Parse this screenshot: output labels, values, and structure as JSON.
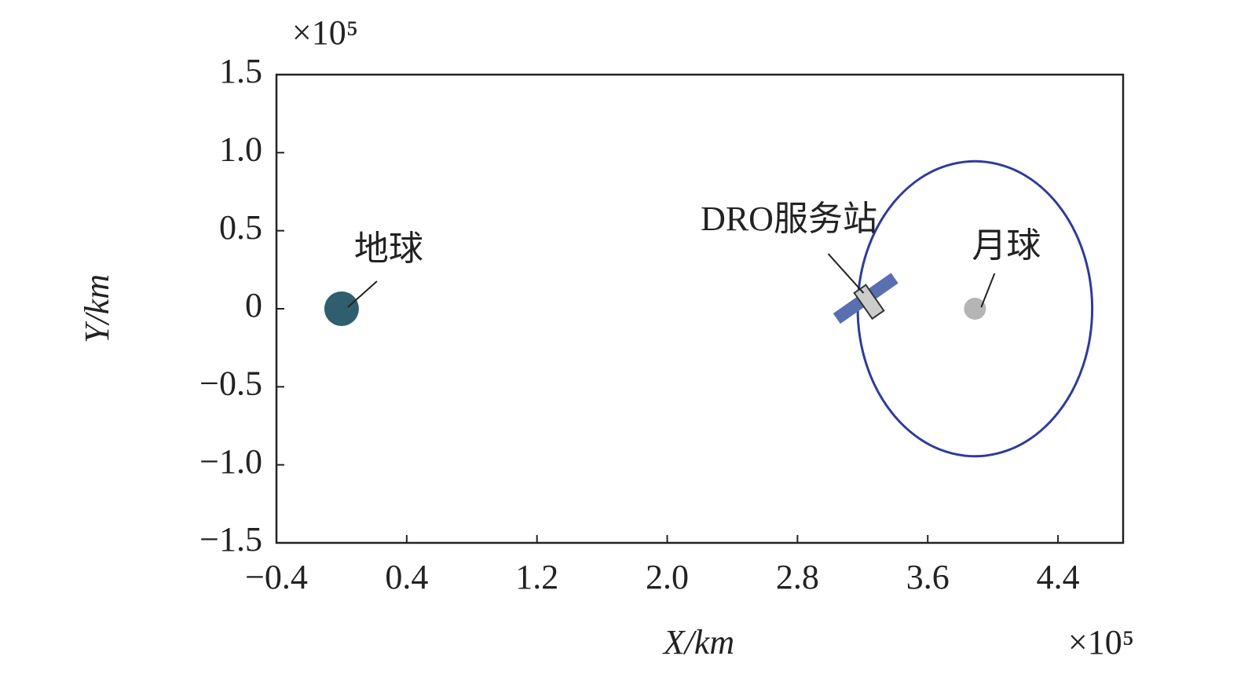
{
  "chart_data": {
    "type": "line",
    "x_label": "X/km",
    "y_label": "Y/km",
    "x_multiplier": "×10⁵",
    "y_multiplier": "×10⁵",
    "xlim": [
      -0.4,
      4.8
    ],
    "ylim": [
      -1.5,
      1.5
    ],
    "xticks": [
      {
        "value": -0.4,
        "label": "−0.4"
      },
      0.4,
      1.2,
      {
        "value": 2,
        "label": "2.0"
      },
      2.8,
      3.6,
      4.4
    ],
    "yticks": [
      {
        "value": -1.5,
        "label": "−1.5"
      },
      {
        "value": -1,
        "label": "−1.0"
      },
      {
        "value": -0.5,
        "label": "−0.5"
      },
      0,
      0.5,
      {
        "value": 1,
        "label": "1.0"
      },
      1.5
    ],
    "series": [
      {
        "color": "#2e3b9c",
        "x": [
          4.61,
          4.555,
          4.399,
          4.166,
          3.89,
          3.614,
          3.381,
          3.225,
          3.17,
          3.225,
          3.381,
          3.614,
          3.89,
          4.166,
          4.399,
          4.555,
          4.61
        ],
        "values": [
          0,
          0.362,
          0.668,
          0.873,
          0.945,
          0.873,
          0.668,
          0.362,
          0,
          -0.362,
          -0.668,
          -0.873,
          -0.945,
          -0.873,
          -0.668,
          -0.362,
          0
        ]
      }
    ],
    "points": [
      {
        "label": "地球",
        "x": 0,
        "y": 0,
        "color": "#2f5f6e"
      },
      {
        "label": "DRO服务站",
        "x": 3.23,
        "y": 0.05,
        "color": "#5a6fb0"
      },
      {
        "label": "月球",
        "x": 3.89,
        "y": 0,
        "color": "#b5b5b5"
      }
    ]
  }
}
